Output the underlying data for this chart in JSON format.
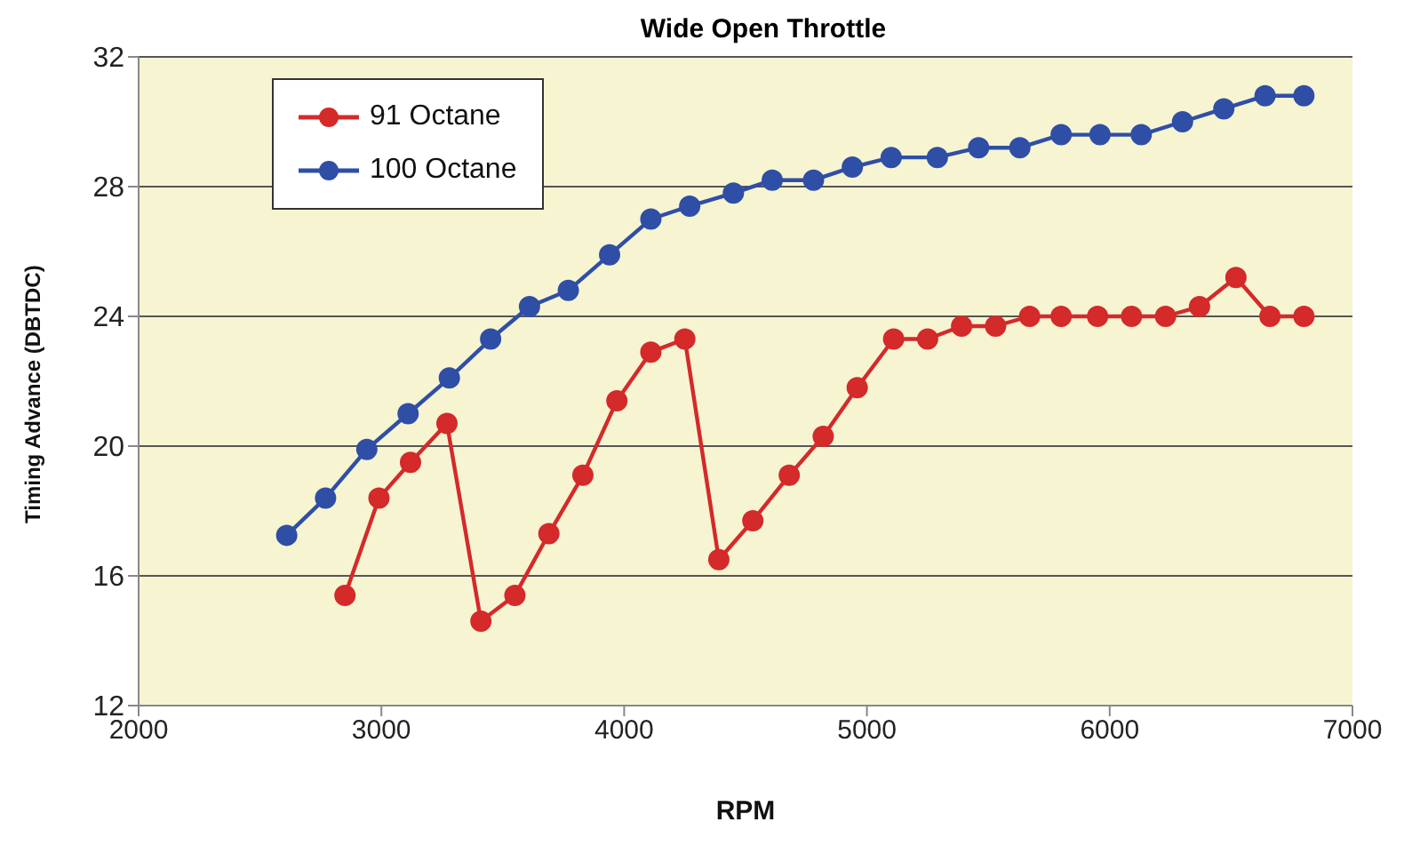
{
  "chart_data": {
    "type": "line",
    "title": "Wide Open Throttle",
    "xlabel": "RPM",
    "ylabel": "Timing Advance (DBTDC)",
    "xlim": [
      2000,
      7000
    ],
    "xticks": [
      2000,
      3000,
      4000,
      5000,
      6000,
      7000
    ],
    "ylim": [
      12,
      32
    ],
    "yticks": [
      12,
      16,
      20,
      24,
      28,
      32
    ],
    "grid": "y",
    "legend": "top left",
    "marker": "circle",
    "line_style": "solid",
    "series": [
      {
        "name": "91 Octane",
        "color": "#d42a2a",
        "x": [
          2850,
          2990,
          3120,
          3270,
          3410,
          3550,
          3690,
          3830,
          3970,
          4110,
          4250,
          4390,
          4530,
          4680,
          4820,
          4960,
          5110,
          5250,
          5390,
          5530,
          5670,
          5800,
          5950,
          6090,
          6230,
          6370,
          6520,
          6660,
          6800
        ],
        "values": [
          15.4,
          18.4,
          19.5,
          20.7,
          14.6,
          15.4,
          17.3,
          19.1,
          21.4,
          22.9,
          23.3,
          16.5,
          17.7,
          19.1,
          20.3,
          21.8,
          23.3,
          23.3,
          23.7,
          23.7,
          24.0,
          24.0,
          24.0,
          24.0,
          24.0,
          24.3,
          25.2,
          24.0,
          24.0
        ]
      },
      {
        "name": "100 Octane",
        "color": "#2f4fa6",
        "x": [
          2610,
          2770,
          2940,
          3110,
          3280,
          3450,
          3610,
          3770,
          3940,
          4110,
          4270,
          4450,
          4610,
          4780,
          4940,
          5100,
          5290,
          5460,
          5630,
          5800,
          5960,
          6130,
          6300,
          6470,
          6640,
          6800
        ],
        "values": [
          17.25,
          18.4,
          19.9,
          21.0,
          22.1,
          23.3,
          24.3,
          24.8,
          25.9,
          27.0,
          27.4,
          27.8,
          28.2,
          28.2,
          28.6,
          28.9,
          28.9,
          29.2,
          29.2,
          29.6,
          29.6,
          29.6,
          30.0,
          30.4,
          30.8,
          30.8
        ]
      }
    ]
  }
}
